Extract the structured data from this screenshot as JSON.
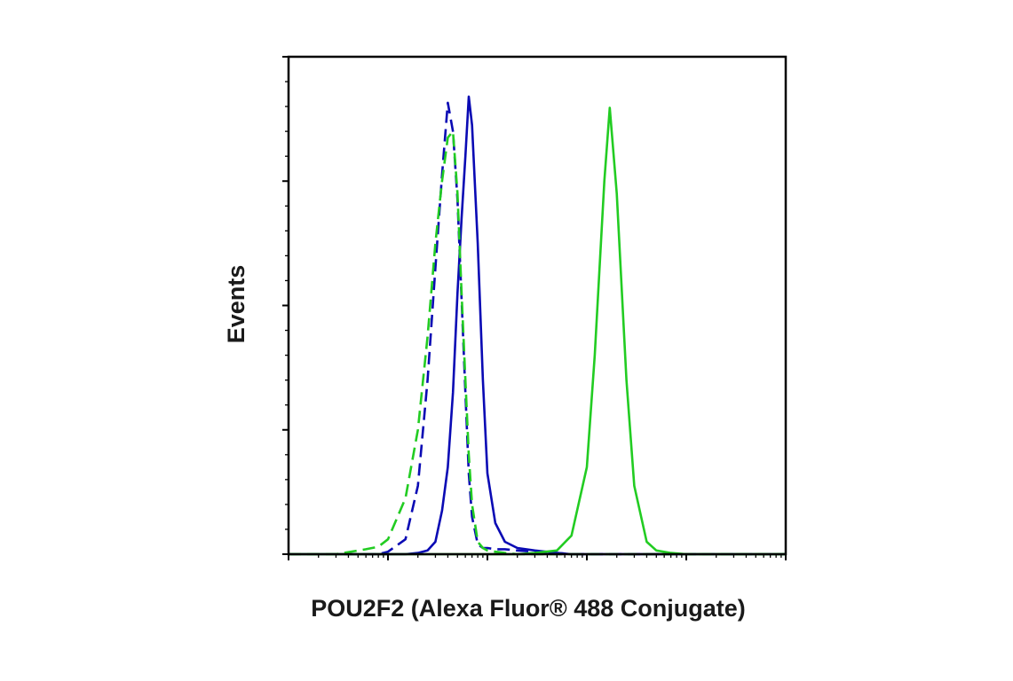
{
  "chart_data": {
    "type": "line",
    "x_label": "POU2F2 (Alexa Fluor® 488 Conjugate)",
    "y_label": "Events",
    "xscale": "log",
    "xlim": [
      1,
      100000
    ],
    "xticks": [
      1,
      10,
      100,
      1000,
      10000,
      100000
    ],
    "xminorticks": [
      2,
      3,
      4,
      5,
      6,
      7,
      8,
      9,
      20,
      30,
      40,
      50,
      60,
      70,
      80,
      90,
      200,
      300,
      400,
      500,
      600,
      700,
      800,
      900,
      2000,
      3000,
      4000,
      5000,
      6000,
      7000,
      8000,
      9000,
      20000,
      30000,
      40000,
      50000,
      60000,
      70000,
      80000,
      90000
    ],
    "ylim": [
      0,
      400
    ],
    "yticks": [
      0,
      100,
      200,
      300,
      400
    ],
    "yminorticks": [
      20,
      40,
      60,
      80,
      120,
      140,
      160,
      180,
      220,
      240,
      260,
      280,
      320,
      340,
      360,
      380
    ],
    "x": [
      1,
      3,
      6,
      8,
      10,
      15,
      20,
      25,
      30,
      35,
      40,
      45,
      50,
      55,
      60,
      65,
      70,
      80,
      90,
      100,
      120,
      150,
      200,
      300,
      500,
      700,
      1000,
      1200,
      1500,
      1700,
      2000,
      2500,
      3000,
      4000,
      5000,
      7000,
      10000,
      100000
    ],
    "series": [
      {
        "color": "#0a0ab4",
        "dash": false,
        "values": [
          0,
          0,
          0,
          0,
          0,
          0,
          1,
          3,
          10,
          35,
          70,
          130,
          210,
          270,
          320,
          368,
          345,
          250,
          140,
          65,
          25,
          10,
          5,
          3,
          1,
          0,
          0,
          0,
          0,
          0,
          0,
          0,
          0,
          0,
          0,
          0,
          0,
          0
        ]
      },
      {
        "color": "#0a0ab4",
        "dash": true,
        "values": [
          0,
          0,
          0,
          0,
          2,
          12,
          55,
          140,
          230,
          305,
          363,
          340,
          285,
          205,
          130,
          65,
          30,
          8,
          5,
          5,
          4,
          4,
          3,
          2,
          1,
          0,
          0,
          0,
          0,
          0,
          0,
          0,
          0,
          0,
          0,
          0,
          0,
          0
        ]
      },
      {
        "color": "#22cc22",
        "dash": true,
        "values": [
          0,
          0,
          4,
          6,
          12,
          45,
          100,
          175,
          250,
          300,
          335,
          340,
          290,
          210,
          140,
          80,
          40,
          10,
          5,
          3,
          2,
          1,
          0,
          0,
          0,
          0,
          0,
          0,
          0,
          0,
          0,
          0,
          0,
          0,
          0,
          0,
          0,
          0
        ]
      },
      {
        "color": "#22cc22",
        "dash": false,
        "values": [
          0,
          0,
          0,
          0,
          0,
          0,
          0,
          0,
          0,
          0,
          0,
          0,
          0,
          0,
          0,
          0,
          0,
          0,
          0,
          0,
          0,
          0,
          0,
          1,
          3,
          15,
          70,
          160,
          300,
          359,
          290,
          140,
          55,
          10,
          3,
          1,
          0,
          0
        ]
      }
    ]
  }
}
